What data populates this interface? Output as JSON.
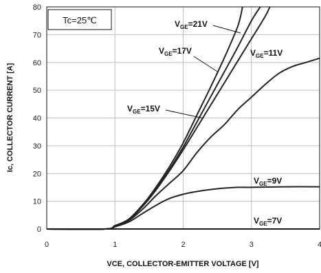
{
  "chart_data": {
    "type": "line",
    "xlabel": "VCE,  COLLECTOR-EMITTER  VOLTAGE [V]",
    "ylabel": "Ic, COLLECTOR CURRENT [A]",
    "xlim": [
      0,
      4
    ],
    "ylim": [
      0,
      80
    ],
    "x_ticks": [
      "0",
      "1",
      "2",
      "3",
      "4"
    ],
    "y_ticks": [
      "0",
      "10",
      "20",
      "30",
      "40",
      "50",
      "60",
      "70",
      "80"
    ],
    "grid": true,
    "condition": "Tc=25℃",
    "series": [
      {
        "name": "VGE=21V",
        "label_main": "V",
        "label_sub": "GE",
        "label_rest": "=21V",
        "x": [
          0,
          0.85,
          1.0,
          1.2,
          1.4,
          1.6,
          1.8,
          2.0,
          2.2,
          2.4,
          2.6,
          2.8,
          2.87
        ],
        "y": [
          0,
          0,
          1.2,
          3.5,
          8.5,
          15,
          22.5,
          31,
          41,
          51,
          61.5,
          73,
          80
        ]
      },
      {
        "name": "VGE=17V",
        "label_main": "V",
        "label_sub": "GE",
        "label_rest": "=17V",
        "x": [
          0,
          0.85,
          1.0,
          1.2,
          1.4,
          1.6,
          1.8,
          2.0,
          2.2,
          2.4,
          2.6,
          2.8,
          3.0,
          3.13
        ],
        "y": [
          0,
          0,
          1.2,
          3.5,
          8.5,
          14.5,
          21.5,
          29.5,
          38.5,
          47.5,
          56.5,
          65.5,
          75,
          80
        ]
      },
      {
        "name": "VGE=15V",
        "label_main": "V",
        "label_sub": "GE",
        "label_rest": "=15V",
        "x": [
          0,
          0.85,
          1.0,
          1.2,
          1.4,
          1.6,
          1.8,
          2.0,
          2.2,
          2.4,
          2.6,
          2.8,
          3.0,
          3.2,
          3.27
        ],
        "y": [
          0,
          0,
          1.2,
          3.3,
          8,
          14,
          21,
          28.5,
          36.5,
          44.5,
          52.5,
          60.5,
          68.5,
          76.5,
          80
        ]
      },
      {
        "name": "VGE=11V",
        "label_main": "V",
        "label_sub": "GE",
        "label_rest": "=11V",
        "x": [
          0,
          0.85,
          1.0,
          1.2,
          1.4,
          1.6,
          1.8,
          2.0,
          2.2,
          2.4,
          2.6,
          2.8,
          3.0,
          3.2,
          3.4,
          3.6,
          3.8,
          4.0
        ],
        "y": [
          0,
          0,
          1.0,
          3.0,
          7,
          12,
          16.5,
          21,
          27.5,
          33,
          37.5,
          43,
          47.5,
          52,
          56,
          58.5,
          60,
          61.5
        ]
      },
      {
        "name": "VGE=9V",
        "label_main": "V",
        "label_sub": "GE",
        "label_rest": "=9V",
        "x": [
          0,
          0.85,
          1.0,
          1.2,
          1.4,
          1.6,
          1.8,
          2.0,
          2.2,
          2.5,
          2.8,
          3.0,
          3.5,
          4.0
        ],
        "y": [
          0,
          0,
          0.8,
          2.5,
          5.5,
          8.5,
          11,
          12.5,
          13.5,
          14.5,
          15,
          15,
          15.2,
          15.2
        ]
      },
      {
        "name": "VGE=7V",
        "label_main": "V",
        "label_sub": "GE",
        "label_rest": "=7V",
        "x": [
          0,
          4.0
        ],
        "y": [
          0,
          0
        ]
      }
    ]
  },
  "colors": {
    "curve": "#222222",
    "grid": "#bfbfbf",
    "axis": "#111111"
  }
}
